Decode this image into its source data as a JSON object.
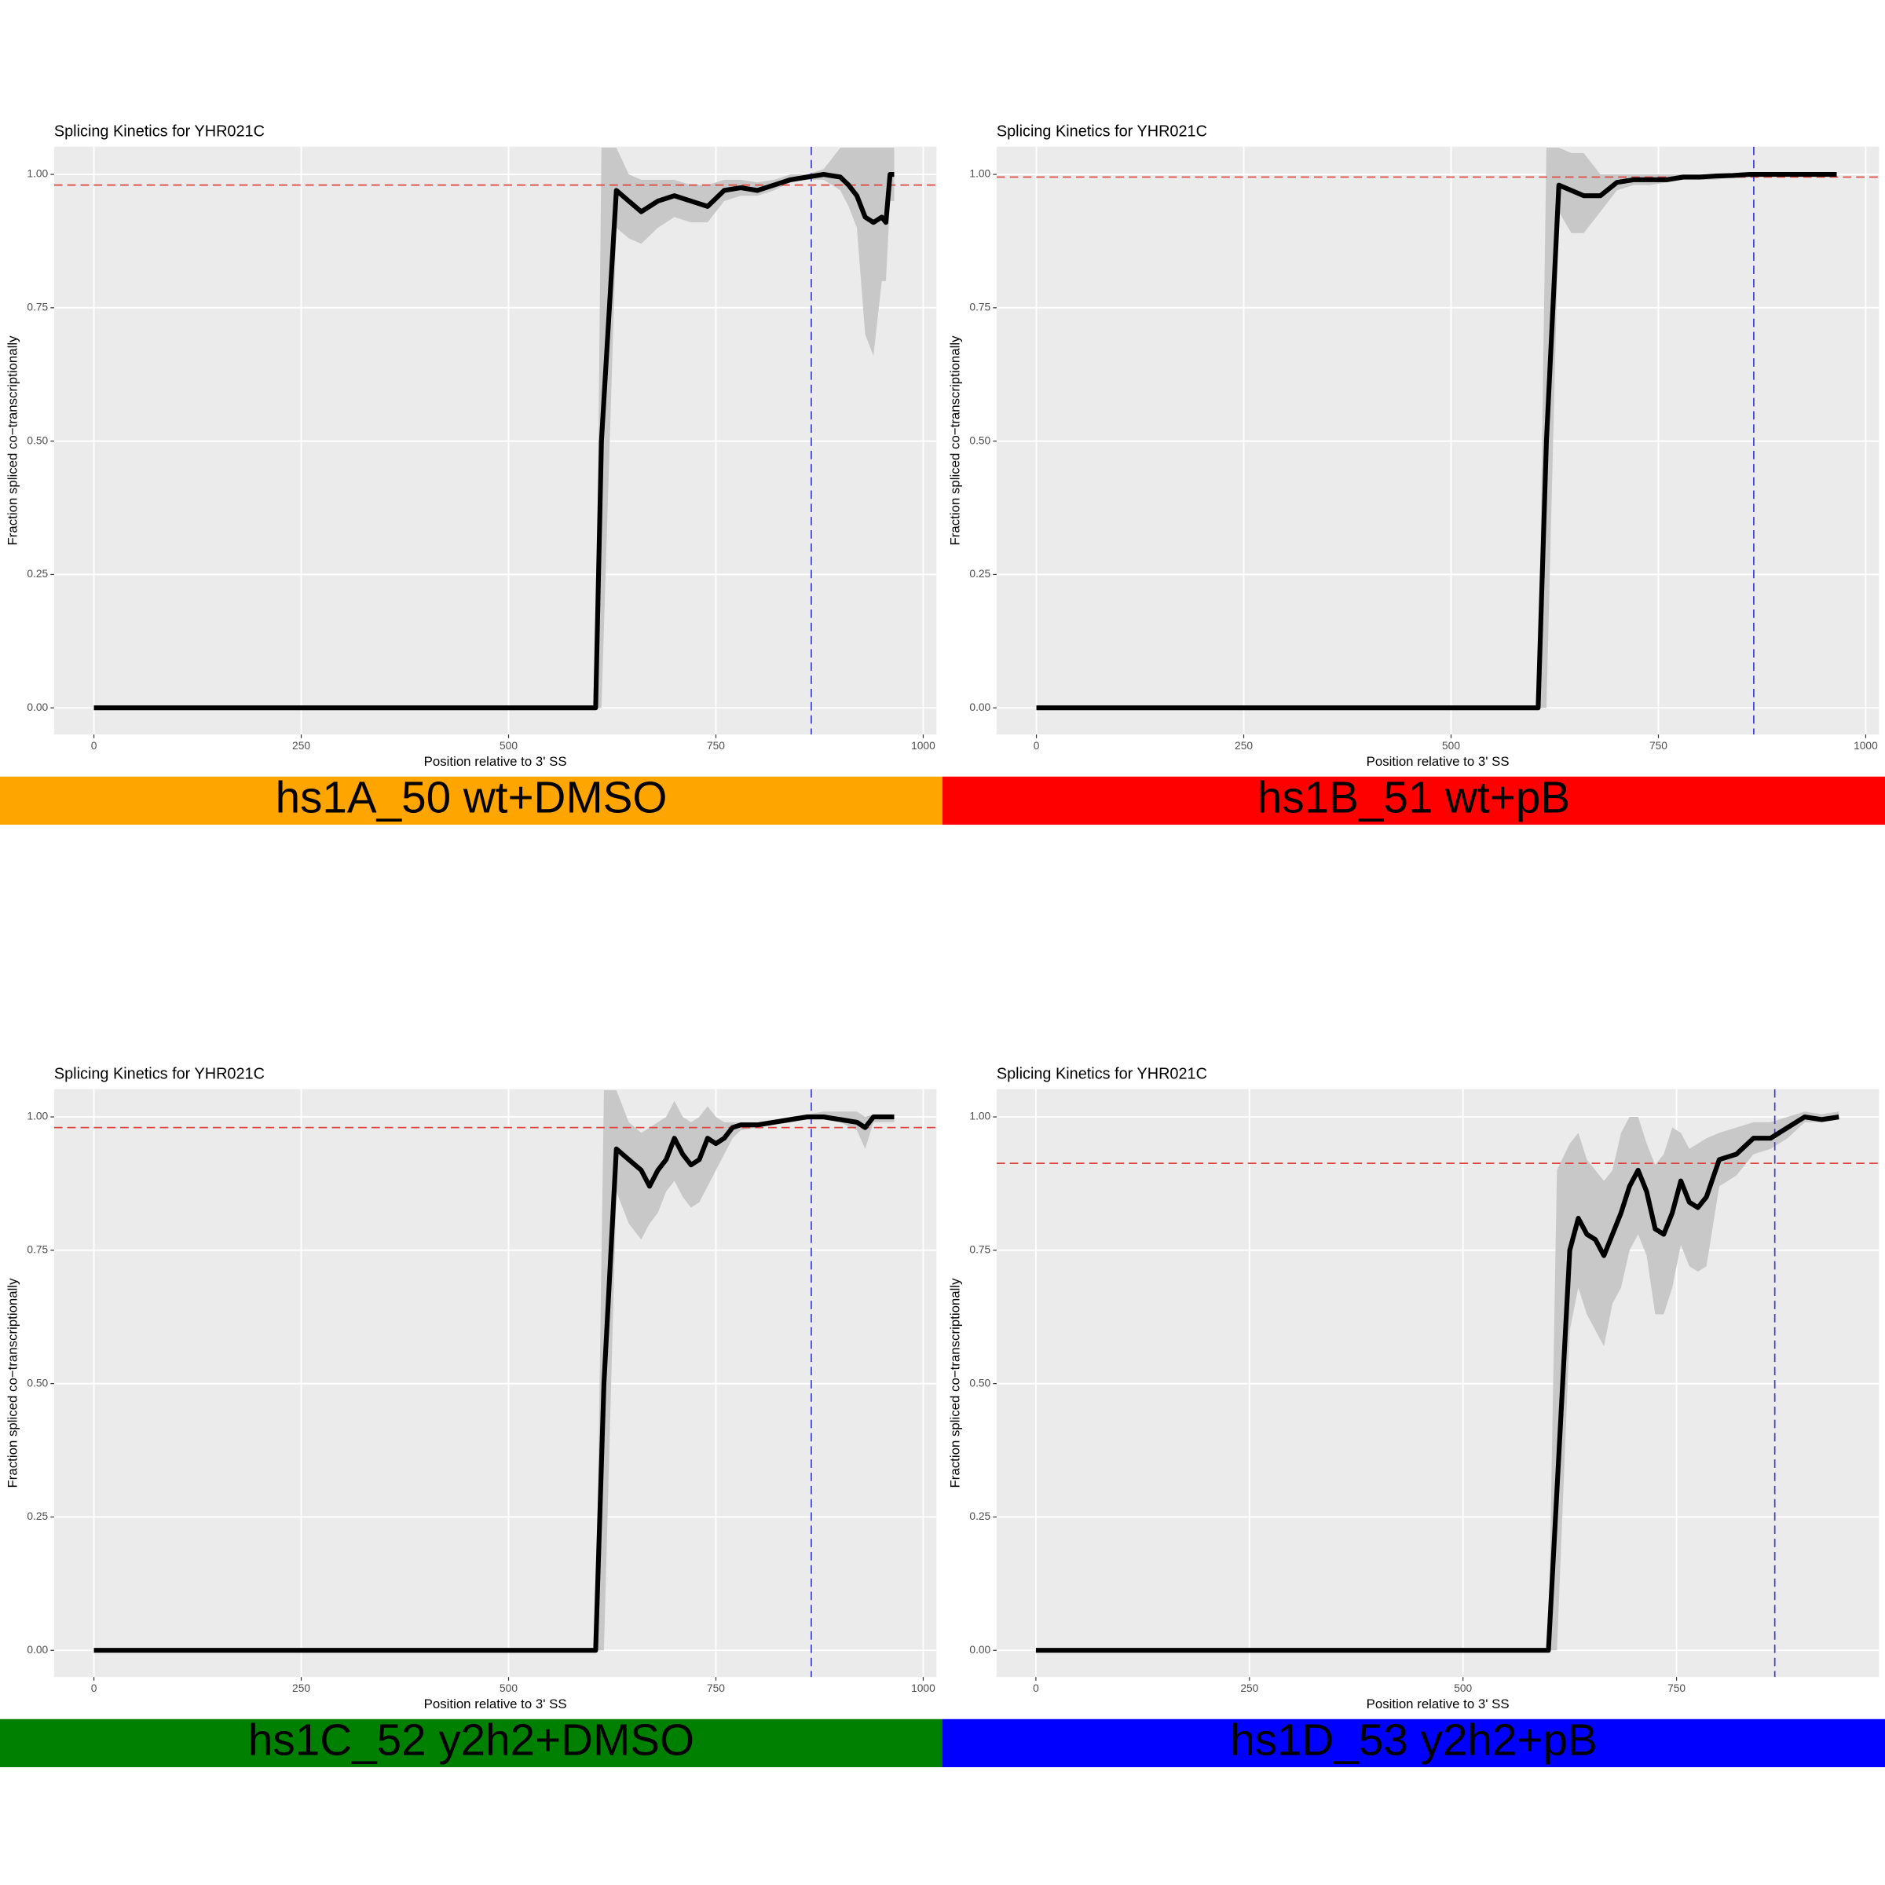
{
  "chart_data": [
    {
      "type": "line",
      "title": "Splicing Kinetics for YHR021C",
      "xlabel": "Position relative to 3' SS",
      "ylabel": "Fraction spliced co−transcriptionally",
      "caption": "hs1A_50 wt+DMSO",
      "caption_color": "#ffa500",
      "xlim": [
        -48,
        1016
      ],
      "xticks": [
        0,
        250,
        500,
        750,
        1000
      ],
      "ylim": [
        -0.05,
        1.052
      ],
      "yticks": [
        {
          "value": 0,
          "label": "0.00"
        },
        {
          "value": 0.25,
          "label": "0.25"
        },
        {
          "value": 0.5,
          "label": "0.50"
        },
        {
          "value": 0.75,
          "label": "0.75"
        },
        {
          "value": 1,
          "label": "1.00"
        }
      ],
      "hline": 0.98,
      "hline_color": "#e0443c",
      "vline": 865,
      "vline_color": "#3a3ad6",
      "color": "#000000",
      "band_color": "#c8c8c8",
      "x": [
        0,
        605,
        612,
        630,
        645,
        660,
        680,
        700,
        720,
        740,
        760,
        780,
        800,
        820,
        840,
        860,
        880,
        900,
        910,
        920,
        930,
        940,
        950,
        955,
        960,
        965
      ],
      "values": [
        0,
        0,
        0.5,
        0.97,
        0.95,
        0.93,
        0.95,
        0.96,
        0.95,
        0.94,
        0.97,
        0.975,
        0.97,
        0.98,
        0.99,
        0.995,
        1.0,
        0.995,
        0.98,
        0.96,
        0.92,
        0.91,
        0.92,
        0.91,
        1.0,
        1.0
      ],
      "band_low": [
        0,
        0,
        0,
        0.9,
        0.88,
        0.87,
        0.9,
        0.92,
        0.91,
        0.91,
        0.95,
        0.96,
        0.96,
        0.97,
        0.985,
        0.99,
        0.99,
        0.97,
        0.94,
        0.9,
        0.7,
        0.66,
        0.8,
        0.8,
        0.95,
        0.95
      ],
      "band_high": [
        0,
        0,
        1.05,
        1.05,
        1.0,
        0.99,
        0.99,
        0.99,
        0.98,
        0.98,
        0.99,
        0.99,
        0.985,
        0.99,
        1.0,
        1.0,
        1.01,
        1.05,
        1.05,
        1.05,
        1.05,
        1.05,
        1.05,
        1.05,
        1.05,
        1.05
      ]
    },
    {
      "type": "line",
      "title": "Splicing Kinetics for YHR021C",
      "xlabel": "Position relative to 3' SS",
      "ylabel": "Fraction spliced co−transcriptionally",
      "caption": "hs1B_51 wt+pB",
      "caption_color": "#ff0000",
      "xlim": [
        -48,
        1016
      ],
      "xticks": [
        0,
        250,
        500,
        750,
        1000
      ],
      "ylim": [
        -0.05,
        1.052
      ],
      "yticks": [
        {
          "value": 0,
          "label": "0.00"
        },
        {
          "value": 0.25,
          "label": "0.25"
        },
        {
          "value": 0.5,
          "label": "0.50"
        },
        {
          "value": 0.75,
          "label": "0.75"
        },
        {
          "value": 1,
          "label": "1.00"
        }
      ],
      "hline": 0.995,
      "hline_color": "#e0443c",
      "vline": 865,
      "vline_color": "#3a3ad6",
      "color": "#000000",
      "band_color": "#c8c8c8",
      "x": [
        0,
        605,
        615,
        630,
        645,
        660,
        680,
        700,
        720,
        740,
        760,
        780,
        800,
        820,
        840,
        860,
        880,
        900,
        920,
        940,
        965
      ],
      "values": [
        0,
        0,
        0.5,
        0.98,
        0.97,
        0.96,
        0.96,
        0.985,
        0.99,
        0.99,
        0.99,
        0.995,
        0.995,
        0.997,
        0.998,
        1.0,
        1.0,
        1.0,
        1.0,
        1.0,
        1.0
      ],
      "band_low": [
        0,
        0,
        0,
        0.93,
        0.89,
        0.89,
        0.93,
        0.97,
        0.98,
        0.98,
        0.985,
        0.99,
        0.99,
        0.99,
        0.995,
        0.998,
        0.998,
        0.998,
        0.998,
        0.998,
        0.998
      ],
      "band_high": [
        0,
        0,
        1.05,
        1.05,
        1.04,
        1.04,
        1.0,
        1.0,
        1.0,
        1.0,
        1.0,
        1.0,
        1.0,
        1.0,
        1.0,
        1.002,
        1.002,
        1.002,
        1.002,
        1.002,
        1.002
      ]
    },
    {
      "type": "line",
      "title": "Splicing Kinetics for YHR021C",
      "xlabel": "Position relative to 3' SS",
      "ylabel": "Fraction spliced co−transcriptionally",
      "caption": "hs1C_52 y2h2+DMSO",
      "caption_color": "#008000",
      "xlim": [
        -48,
        1016
      ],
      "xticks": [
        0,
        250,
        500,
        750,
        1000
      ],
      "ylim": [
        -0.05,
        1.052
      ],
      "yticks": [
        {
          "value": 0,
          "label": "0.00"
        },
        {
          "value": 0.25,
          "label": "0.25"
        },
        {
          "value": 0.5,
          "label": "0.50"
        },
        {
          "value": 0.75,
          "label": "0.75"
        },
        {
          "value": 1,
          "label": "1.00"
        }
      ],
      "hline": 0.98,
      "hline_color": "#e0443c",
      "vline": 865,
      "vline_color": "#3a3ad6",
      "color": "#000000",
      "band_color": "#c8c8c8",
      "x": [
        0,
        605,
        615,
        630,
        645,
        660,
        670,
        680,
        690,
        700,
        710,
        720,
        730,
        740,
        750,
        760,
        770,
        780,
        800,
        820,
        840,
        860,
        880,
        900,
        920,
        930,
        940,
        965
      ],
      "values": [
        0,
        0,
        0.5,
        0.94,
        0.92,
        0.9,
        0.87,
        0.9,
        0.92,
        0.96,
        0.93,
        0.91,
        0.92,
        0.96,
        0.95,
        0.96,
        0.98,
        0.985,
        0.985,
        0.99,
        0.995,
        1.0,
        1.0,
        0.995,
        0.99,
        0.98,
        1.0,
        1.0
      ],
      "band_low": [
        0,
        0,
        0,
        0.86,
        0.8,
        0.77,
        0.8,
        0.82,
        0.86,
        0.88,
        0.85,
        0.83,
        0.84,
        0.87,
        0.9,
        0.93,
        0.96,
        0.975,
        0.98,
        0.985,
        0.99,
        0.995,
        0.995,
        0.99,
        0.975,
        0.94,
        0.99,
        0.99
      ],
      "band_high": [
        0,
        0,
        1.05,
        1.05,
        0.99,
        0.97,
        0.98,
        0.99,
        1.0,
        1.03,
        1.0,
        0.99,
        1.0,
        1.02,
        1.0,
        0.99,
        0.99,
        0.99,
        0.99,
        0.995,
        1.0,
        1.005,
        1.01,
        1.01,
        1.01,
        1.0,
        1.005,
        1.005
      ]
    },
    {
      "type": "line",
      "title": "Splicing Kinetics for YHR021C",
      "xlabel": "Position relative to 3' SS",
      "ylabel": "Fraction spliced co−transcriptionally",
      "caption": "hs1D_53 y2h2+pB",
      "caption_color": "#0000ff",
      "xlim": [
        -46,
        987
      ],
      "xticks": [
        0,
        250,
        500,
        750
      ],
      "ylim": [
        -0.05,
        1.052
      ],
      "yticks": [
        {
          "value": 0,
          "label": "0.00"
        },
        {
          "value": 0.25,
          "label": "0.25"
        },
        {
          "value": 0.5,
          "label": "0.50"
        },
        {
          "value": 0.75,
          "label": "0.75"
        },
        {
          "value": 1,
          "label": "1.00"
        }
      ],
      "hline": 0.913,
      "hline_color": "#e0443c",
      "vline": 865,
      "vline_color": "#3a3ad6",
      "color": "#000000",
      "band_color": "#c8c8c8",
      "x": [
        0,
        600,
        610,
        625,
        635,
        645,
        655,
        665,
        675,
        685,
        695,
        705,
        715,
        725,
        735,
        745,
        755,
        765,
        775,
        785,
        800,
        820,
        840,
        860,
        880,
        900,
        920,
        940
      ],
      "values": [
        0,
        0,
        0.3,
        0.75,
        0.81,
        0.78,
        0.77,
        0.74,
        0.78,
        0.82,
        0.87,
        0.9,
        0.86,
        0.79,
        0.78,
        0.82,
        0.88,
        0.84,
        0.83,
        0.85,
        0.92,
        0.93,
        0.96,
        0.96,
        0.98,
        1.0,
        0.995,
        1.0
      ],
      "band_low": [
        0,
        0,
        0,
        0.6,
        0.68,
        0.63,
        0.6,
        0.57,
        0.65,
        0.68,
        0.75,
        0.78,
        0.74,
        0.63,
        0.63,
        0.68,
        0.76,
        0.72,
        0.71,
        0.72,
        0.87,
        0.89,
        0.93,
        0.94,
        0.96,
        0.99,
        0.99,
        0.995
      ],
      "band_high": [
        0,
        0,
        0.9,
        0.95,
        0.97,
        0.92,
        0.9,
        0.88,
        0.9,
        0.97,
        1.0,
        1.0,
        0.95,
        0.91,
        0.93,
        0.98,
        0.97,
        0.94,
        0.95,
        0.96,
        0.97,
        0.98,
        0.99,
        0.99,
        1.0,
        1.01,
        1.005,
        1.01
      ]
    }
  ]
}
